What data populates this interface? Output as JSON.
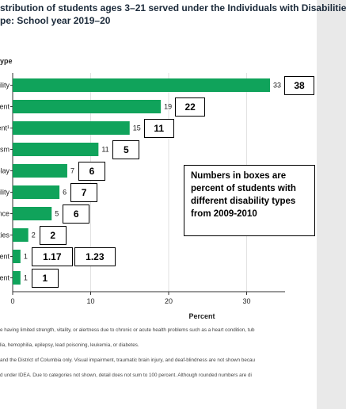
{
  "title": {
    "line1": "stribution of students ages 3–21 served under the Individuals with Disabilitie",
    "line2": "pe: School year 2019–20"
  },
  "y_axis_title": "ype",
  "x_axis_title": "Percent",
  "note": "Numbers in boxes are percent of students with different disability types from 2009-2010",
  "footnotes": [
    "e having limited strength, vitality, or alertness due to chronic or acute health problems such as a heart condition, tub",
    "lia, hemophilia, epilepsy, lead poisoning, leukemia, or diabetes.",
    "and the District of Columbia only. Visual impairment, traumatic brain injury, and deaf-blindness are not shown becau",
    "d under IDEA. Due to categories not shown, detail does not sum to 100 percent. Although rounded numbers are di"
  ],
  "colors": {
    "bar": "#10a35b",
    "axis": "#333333"
  },
  "chart_data": {
    "type": "bar",
    "orientation": "horizontal",
    "categories": [
      "ility",
      "ent",
      "ent¹",
      "sm",
      "play",
      "ility",
      "nce",
      "ities",
      "ent",
      "ent"
    ],
    "values": [
      33,
      19,
      15,
      11,
      7,
      6,
      5,
      2,
      1,
      1
    ],
    "value_labels": [
      "33",
      "19",
      "15",
      "11",
      "7",
      "6",
      "5",
      "2",
      "1",
      "1"
    ],
    "boxed_2009_2010": [
      [
        "38"
      ],
      [
        "22"
      ],
      [
        "11"
      ],
      [
        "5"
      ],
      [
        "6"
      ],
      [
        "7"
      ],
      [
        "6"
      ],
      [
        "2"
      ],
      [
        "1.17",
        "1.23"
      ],
      [
        "1"
      ]
    ],
    "xlim": [
      0,
      35
    ],
    "xticks": [
      0,
      10,
      20,
      30
    ],
    "xlabel": "Percent"
  }
}
